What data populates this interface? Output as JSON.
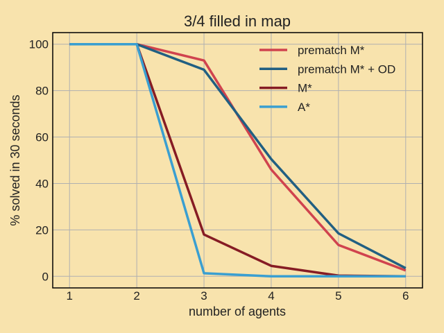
{
  "chart_data": {
    "type": "line",
    "title": "3/4 filled in map",
    "xlabel": "number of agents",
    "ylabel": "% solved in 30 seconds",
    "x": [
      1,
      2,
      3,
      4,
      5,
      6
    ],
    "xlim": [
      0.75,
      6.25
    ],
    "ylim": [
      -5,
      105
    ],
    "xticks": [
      1,
      2,
      3,
      4,
      5,
      6
    ],
    "yticks": [
      0,
      20,
      40,
      60,
      80,
      100
    ],
    "grid": true,
    "legend_position": "top-right",
    "background_color": "#f8e3ad",
    "series": [
      {
        "name": "prematch M*",
        "color": "#d0434e",
        "values": [
          100,
          100,
          93,
          46,
          13.5,
          2.5
        ]
      },
      {
        "name": "prematch M* + OD",
        "color": "#215f82",
        "values": [
          100,
          100,
          89,
          50.5,
          18.5,
          3.5
        ]
      },
      {
        "name": "M*",
        "color": "#861c24",
        "values": [
          100,
          100,
          18,
          4.5,
          0.3,
          0
        ]
      },
      {
        "name": "A*",
        "color": "#3a9fd1",
        "values": [
          100,
          100,
          1.3,
          0,
          0,
          0
        ]
      }
    ]
  }
}
